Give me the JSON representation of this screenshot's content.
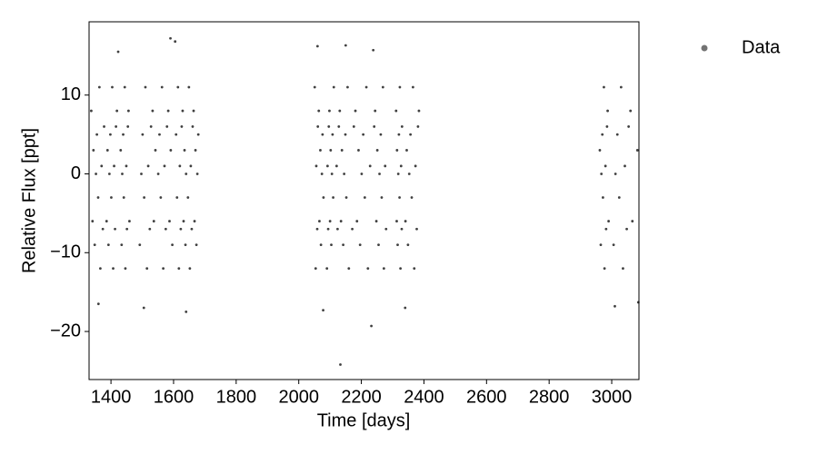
{
  "chart_data": {
    "type": "scatter",
    "xlabel": "Time [days]",
    "ylabel": "Relative Flux [ppt]",
    "xlim": [
      1330,
      3087
    ],
    "ylim": [
      -26.1,
      19.3
    ],
    "xticks": [
      1400,
      1600,
      1800,
      2000,
      2200,
      2400,
      2600,
      2800,
      3000
    ],
    "yticks": [
      {
        "value": -20,
        "label": "−20"
      },
      {
        "value": -10,
        "label": "−10"
      },
      0,
      10
    ],
    "legend": "right",
    "series": [
      {
        "name": "Data",
        "color": "#000000",
        "x": [
          1337,
          1341,
          1344,
          1348,
          1352,
          1355,
          1359,
          1363,
          1366,
          1370,
          1374,
          1378,
          1386,
          1389,
          1392,
          1395,
          1398,
          1401,
          1404,
          1407,
          1410,
          1413,
          1416,
          1419,
          1431,
          1434,
          1436,
          1439,
          1441,
          1444,
          1446,
          1449,
          1451,
          1454,
          1456,
          1459,
          1492,
          1497,
          1501,
          1506,
          1510,
          1515,
          1519,
          1524,
          1528,
          1533,
          1537,
          1542,
          1551,
          1555,
          1559,
          1563,
          1567,
          1571,
          1575,
          1579,
          1583,
          1587,
          1591,
          1596,
          1608,
          1611,
          1614,
          1617,
          1620,
          1623,
          1626,
          1629,
          1632,
          1635,
          1638,
          1640,
          1646,
          1649,
          1652,
          1655,
          1658,
          1661,
          1664,
          1667,
          1670,
          1673,
          1676,
          1679,
          2051,
          2054,
          2056,
          2059,
          2061,
          2064,
          2066,
          2069,
          2071,
          2074,
          2076,
          2079,
          2090,
          2092,
          2094,
          2096,
          2098,
          2100,
          2102,
          2104,
          2106,
          2108,
          2110,
          2112,
          2121,
          2124,
          2128,
          2131,
          2135,
          2138,
          2142,
          2145,
          2149,
          2152,
          2156,
          2160,
          2171,
          2176,
          2181,
          2186,
          2191,
          2196,
          2201,
          2206,
          2211,
          2216,
          2221,
          2228,
          2241,
          2244,
          2248,
          2251,
          2255,
          2258,
          2262,
          2265,
          2269,
          2272,
          2276,
          2279,
          2311,
          2313,
          2314,
          2316,
          2318,
          2320,
          2322,
          2323,
          2325,
          2327,
          2329,
          2330,
          2341,
          2345,
          2349,
          2353,
          2357,
          2361,
          2365,
          2369,
          2373,
          2377,
          2381,
          2384,
          2962,
          2965,
          2967,
          2970,
          2972,
          2975,
          2977,
          2980,
          2982,
          2985,
          2987,
          2990,
          3006,
          3012,
          3018,
          3024,
          3030,
          3036,
          3042,
          3048,
          3054,
          3060,
          3066,
          3082,
          1590,
          1605,
          1640,
          1505,
          2060,
          2078,
          2133,
          2150,
          2232,
          2238,
          2340,
          3010,
          3085,
          1423,
          1360
        ],
        "y": [
          8,
          -6,
          3,
          -9,
          0,
          5,
          -3,
          11,
          -12,
          1,
          -7,
          6,
          -6,
          3,
          -9,
          0,
          5,
          -3,
          11,
          -12,
          1,
          -7,
          6,
          8,
          3,
          -9,
          0,
          5,
          -3,
          11,
          -12,
          1,
          -7,
          6,
          8,
          -6,
          -9,
          0,
          5,
          -3,
          11,
          -12,
          1,
          -7,
          6,
          8,
          -6,
          3,
          0,
          5,
          -3,
          11,
          -12,
          1,
          -7,
          6,
          8,
          -6,
          3,
          -9,
          5,
          -3,
          11,
          -12,
          1,
          -7,
          6,
          8,
          -6,
          3,
          -9,
          0,
          -3,
          11,
          -12,
          1,
          -7,
          6,
          8,
          -6,
          3,
          -9,
          0,
          5,
          11,
          -12,
          1,
          -7,
          6,
          8,
          -6,
          3,
          -9,
          0,
          5,
          -3,
          -12,
          1,
          -7,
          6,
          8,
          -6,
          3,
          -9,
          0,
          5,
          -3,
          11,
          1,
          -7,
          6,
          8,
          -6,
          3,
          -9,
          0,
          5,
          -3,
          11,
          -12,
          -7,
          6,
          8,
          -6,
          3,
          -9,
          0,
          5,
          -3,
          11,
          -12,
          1,
          6,
          8,
          -6,
          3,
          -9,
          0,
          5,
          -3,
          11,
          -12,
          1,
          -7,
          8,
          -6,
          3,
          -9,
          0,
          5,
          -3,
          11,
          -12,
          1,
          -7,
          6,
          -6,
          3,
          -9,
          0,
          5,
          -3,
          11,
          -12,
          1,
          -7,
          6,
          8,
          3,
          -9,
          0,
          5,
          -3,
          11,
          -12,
          1,
          -7,
          6,
          8,
          -6,
          -9,
          0,
          5,
          -3,
          11,
          -12,
          1,
          -7,
          6,
          8,
          -6,
          3,
          17.2,
          16.8,
          -17.5,
          -17,
          16.2,
          -17.3,
          -24.2,
          16.3,
          -19.3,
          15.7,
          -17,
          -16.8,
          -16.3,
          15.5,
          -16.5
        ]
      }
    ]
  }
}
